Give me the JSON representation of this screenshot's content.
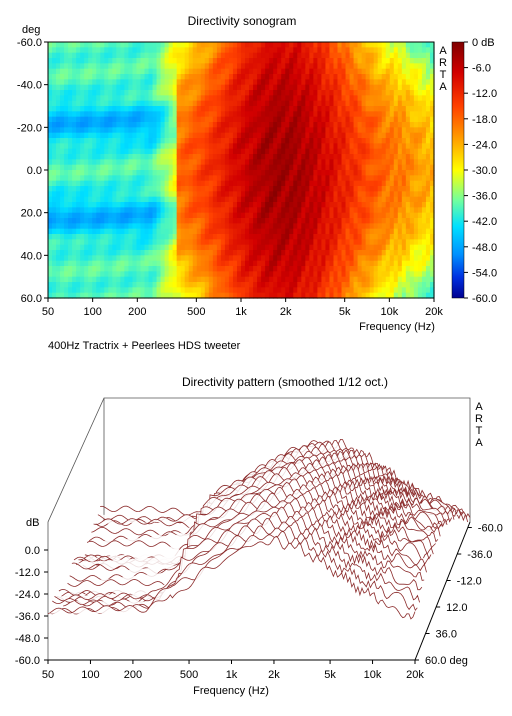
{
  "chart_data": [
    {
      "type": "heatmap",
      "title": "Directivity sonogram",
      "ylabel": "deg",
      "xlabel": "Frequency (Hz)",
      "x_scale": "log",
      "xlim": [
        50,
        20000
      ],
      "ylim": [
        -60,
        60
      ],
      "x_ticks": [
        {
          "v": 50,
          "label": "50"
        },
        {
          "v": 100,
          "label": "100"
        },
        {
          "v": 200,
          "label": "200"
        },
        {
          "v": 500,
          "label": "500"
        },
        {
          "v": 1000,
          "label": "1k"
        },
        {
          "v": 2000,
          "label": "2k"
        },
        {
          "v": 5000,
          "label": "5k"
        },
        {
          "v": 10000,
          "label": "10k"
        },
        {
          "v": 20000,
          "label": "20k"
        }
      ],
      "y_ticks": [
        {
          "v": -60,
          "label": "-60.0"
        },
        {
          "v": -40,
          "label": "-40.0"
        },
        {
          "v": -20,
          "label": "-20.0"
        },
        {
          "v": 0,
          "label": "0.0"
        },
        {
          "v": 20,
          "label": "20.0"
        },
        {
          "v": 40,
          "label": "40.0"
        },
        {
          "v": 60,
          "label": "60.0"
        }
      ],
      "colorbar": {
        "range": [
          -60,
          0
        ],
        "labels": [
          "0 dB",
          "-6.0",
          "-12.0",
          "-18.0",
          "-24.0",
          "-30.0",
          "-36.0",
          "-42.0",
          "-48.0",
          "-54.0",
          "-60.0"
        ]
      },
      "watermark": "ARTA"
    },
    {
      "type": "line",
      "title": "Directivity pattern (smoothed 1/12 oct.)",
      "xlabel": "Frequency (Hz)",
      "ylabel": "dB",
      "x_scale": "log",
      "xlim": [
        50,
        20000
      ],
      "ylim": [
        -60,
        0
      ],
      "x_ticks": [
        {
          "v": 50,
          "label": "50"
        },
        {
          "v": 100,
          "label": "100"
        },
        {
          "v": 200,
          "label": "200"
        },
        {
          "v": 500,
          "label": "500"
        },
        {
          "v": 1000,
          "label": "1k"
        },
        {
          "v": 2000,
          "label": "2k"
        },
        {
          "v": 5000,
          "label": "5k"
        },
        {
          "v": 10000,
          "label": "10k"
        },
        {
          "v": 20000,
          "label": "20k"
        }
      ],
      "y_ticks": [
        "0.0",
        "-12.0",
        "-24.0",
        "-36.0",
        "-48.0",
        "-60.0"
      ],
      "z_ticks": [
        "-60.0",
        "-36.0",
        "-12.0",
        "12.0",
        "36.0",
        "60.0 deg"
      ],
      "line_color": "#8b2b2b",
      "watermark": "ARTA"
    }
  ],
  "caption": "400Hz Tractrix + Peerlees HDS tweeter"
}
